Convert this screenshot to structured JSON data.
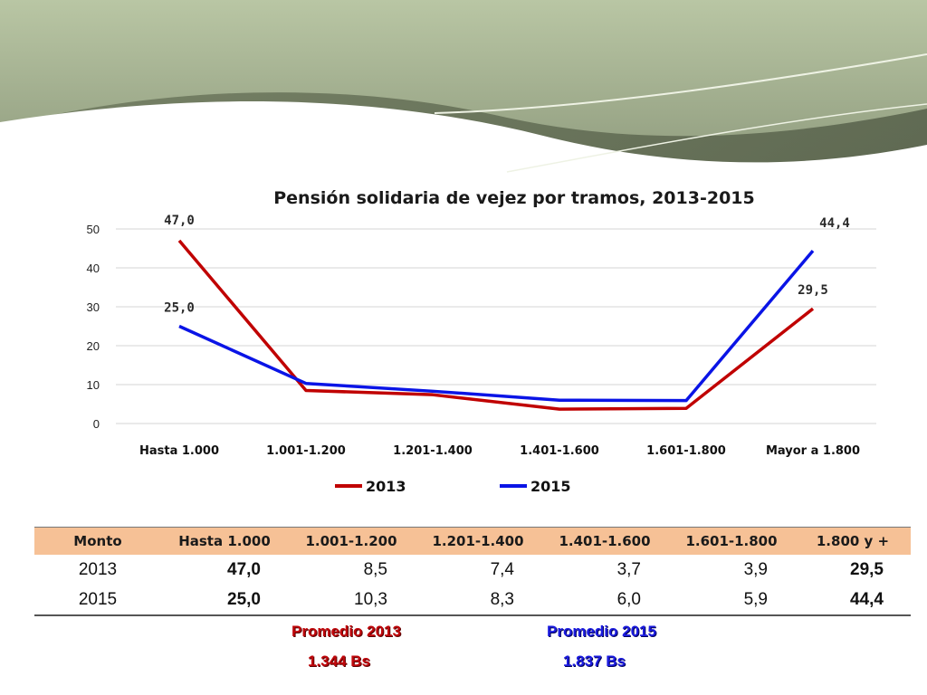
{
  "colors": {
    "series_2013": "#c00000",
    "series_2015": "#0a14e6",
    "table_header_bg": "#f6c196"
  },
  "chart_data": {
    "type": "line",
    "title": "Pensión solidaria de vejez por tramos, 2013-2015",
    "categories": [
      "Hasta 1.000",
      "1.001-1.200",
      "1.201-1.400",
      "1.401-1.600",
      "1.601-1.800",
      "Mayor a 1.800"
    ],
    "series": [
      {
        "name": "2013",
        "values": [
          47.0,
          8.5,
          7.4,
          3.7,
          3.9,
          29.5
        ],
        "color": "#c00000"
      },
      {
        "name": "2015",
        "values": [
          25.0,
          10.3,
          8.3,
          6.0,
          5.9,
          44.4
        ],
        "color": "#0a14e6"
      }
    ],
    "data_labels": [
      {
        "series": 0,
        "index": 0,
        "text": "47,0"
      },
      {
        "series": 1,
        "index": 0,
        "text": "25,0"
      },
      {
        "series": 1,
        "index": 5,
        "text": "44,4"
      },
      {
        "series": 0,
        "index": 5,
        "text": "29,5"
      }
    ],
    "yticks": [
      "0",
      "10",
      "20",
      "30",
      "40",
      "50"
    ],
    "ylim": [
      0,
      50
    ],
    "grid": true,
    "legend": "bottom"
  },
  "table": {
    "headers": [
      "Monto",
      "Hasta 1.000",
      "1.001-1.200",
      "1.201-1.400",
      "1.401-1.600",
      "1.601-1.800",
      "1.800 y +"
    ],
    "rows": [
      [
        "2013",
        "47,0",
        "8,5",
        "7,4",
        "3,7",
        "3,9",
        "29,5"
      ],
      [
        "2015",
        "25,0",
        "10,3",
        "8,3",
        "6,0",
        "5,9",
        "44,4"
      ]
    ]
  },
  "averages": {
    "label_2013": "Promedio 2013",
    "value_2013": "1.344 Bs",
    "label_2015": "Promedio 2015",
    "value_2015": "1.837 Bs"
  }
}
